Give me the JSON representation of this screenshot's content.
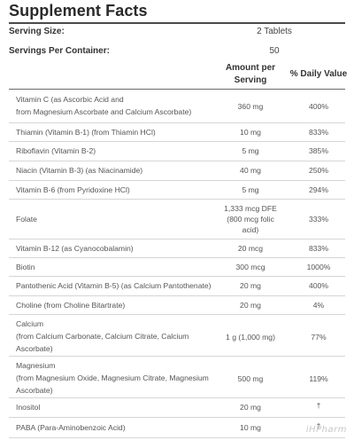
{
  "panel": {
    "title": "Supplement Facts"
  },
  "serving": {
    "size_label": "Serving Size:",
    "size_value": "2 Tablets",
    "per_container_label": "Servings Per Container:",
    "per_container_value": "50"
  },
  "table": {
    "headers": {
      "amount": "Amount per Serving",
      "dv": "% Daily Value"
    },
    "rows": [
      {
        "name_l1": "Vitamin C (as Ascorbic Acid and",
        "name_l2": "from Magnesium Ascorbate and Calcium Ascorbate)",
        "amount": "360 mg",
        "dv": "400%"
      },
      {
        "name_l1": "Thiamin (Vitamin B-1) (from Thiamin HCl)",
        "amount": "10 mg",
        "dv": "833%"
      },
      {
        "name_l1": "Riboflavin (Vitamin B-2)",
        "amount": "5 mg",
        "dv": "385%"
      },
      {
        "name_l1": "Niacin (Vitamin B-3) (as Niacinamide)",
        "amount": "40 mg",
        "dv": "250%"
      },
      {
        "name_l1": "Vitamin B-6 (from Pyridoxine HCl)",
        "amount": "5 mg",
        "dv": "294%"
      },
      {
        "name_l1": "Folate",
        "amount_l1": "1,333 mcg DFE",
        "amount_l2": "(800 mcg folic",
        "amount_l3": "acid)",
        "dv": "333%"
      },
      {
        "name_l1": "Vitamin B-12 (as Cyanocobalamin)",
        "amount": "20 mcg",
        "dv": "833%"
      },
      {
        "name_l1": "Biotin",
        "amount": "300 mcg",
        "dv": "1000%"
      },
      {
        "name_l1": "Pantothenic Acid (Vitamin B-5) (as Calcium Pantothenate)",
        "amount": "20 mg",
        "dv": "400%"
      },
      {
        "name_l1": "Choline (from Choline Bitartrate)",
        "amount": "20 mg",
        "dv": "4%"
      },
      {
        "name_l1": "Calcium",
        "name_l2": "(from Calcium Carbonate, Calcium Citrate, Calcium",
        "name_l3": "Ascorbate)",
        "amount": "1 g (1,000 mg)",
        "dv": "77%"
      },
      {
        "name_l1": "Magnesium",
        "name_l2": "(from Magnesium Oxide, Magnesium Citrate, Magnesium",
        "name_l3": "Ascorbate)",
        "amount": "500 mg",
        "dv": "119%"
      },
      {
        "name_l1": "Inositol",
        "amount": "20 mg",
        "dv": "†"
      },
      {
        "name_l1": "PABA (Para-Aminobenzoic Acid)",
        "amount": "10 mg",
        "dv": "†"
      }
    ]
  },
  "watermark": {
    "text": "iHPharm"
  }
}
